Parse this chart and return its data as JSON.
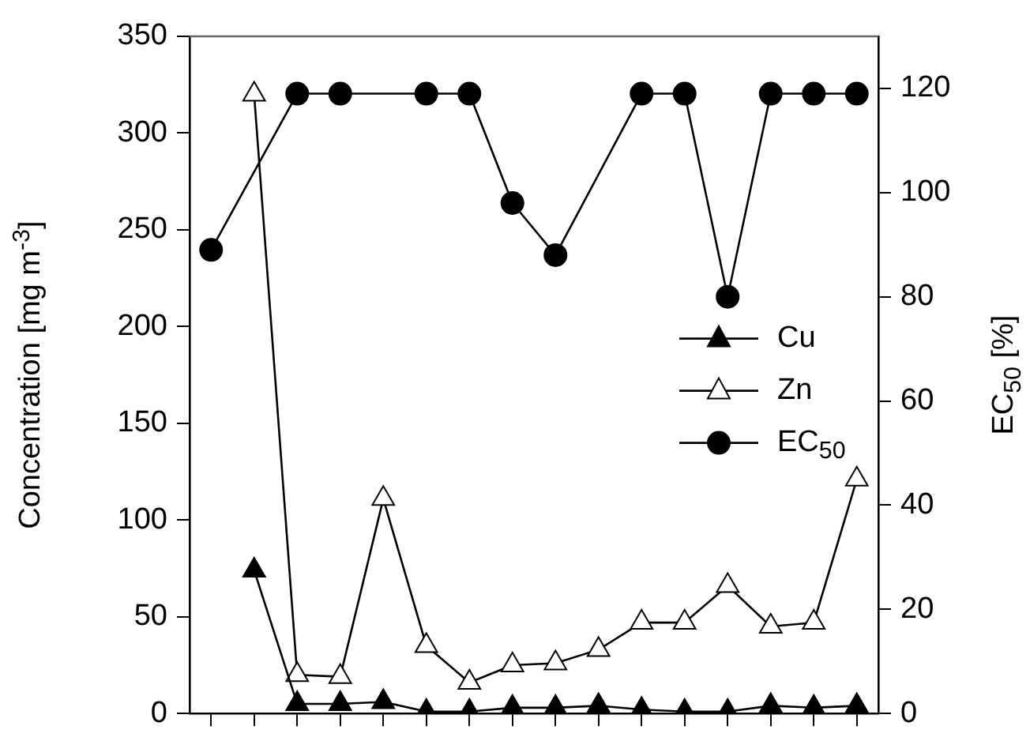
{
  "chart_data": {
    "type": "line",
    "ylabel": "Concentration [mg m$^{-3}$]",
    "y2label": "EC$_{50}$ [%]",
    "categories": [
      null,
      null,
      null,
      null,
      null,
      null,
      null,
      null,
      null,
      null,
      null,
      null,
      null,
      null,
      null,
      null
    ],
    "ylim": [
      0,
      350
    ],
    "yticks": [
      0,
      50,
      100,
      150,
      200,
      250,
      300,
      350
    ],
    "y2lim": [
      0,
      130
    ],
    "y2ticks": [
      0,
      20,
      40,
      60,
      80,
      100,
      120
    ],
    "grid": false,
    "legend": "right",
    "line_style": "solid",
    "series": [
      {
        "name": "Cu",
        "color": "#000000",
        "marker": "triangle",
        "values": [
          null,
          74,
          5,
          5,
          6,
          1,
          1,
          3,
          3,
          4,
          2,
          1,
          1,
          4,
          3,
          4
        ]
      },
      {
        "name": "Zn",
        "color": "#000000",
        "marker": "triangle",
        "values": [
          null,
          320,
          20,
          19,
          111,
          35,
          16,
          25,
          26,
          33,
          47,
          47,
          66,
          45,
          47,
          121
        ]
      },
      {
        "name": "EC$_{50}$",
        "color": "#000000",
        "marker": "circle",
        "axis": "y2",
        "values": [
          89,
          null,
          119,
          119,
          null,
          119,
          119,
          98,
          88,
          null,
          119,
          119,
          80,
          119,
          119,
          119
        ]
      }
    ]
  }
}
